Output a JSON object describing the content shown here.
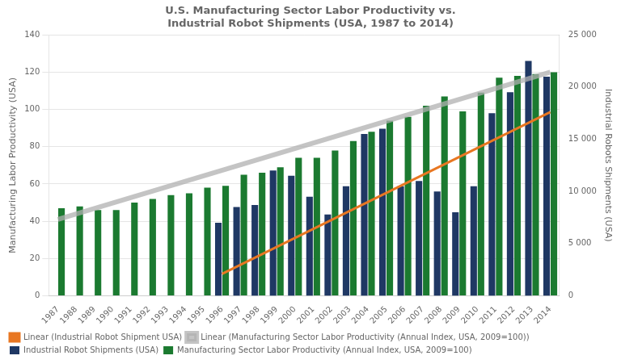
{
  "chart_data": {
    "type": "bar",
    "title": "U.S. Manufacturing Sector Labor Productivity vs.\nIndustrial Robot Shipments (USA, 1987 to 2014)",
    "categories": [
      1987,
      1988,
      1989,
      1990,
      1991,
      1992,
      1993,
      1994,
      1995,
      1996,
      1997,
      1998,
      1999,
      2000,
      2001,
      2002,
      2003,
      2004,
      2005,
      2006,
      2007,
      2008,
      2009,
      2010,
      2011,
      2012,
      2013,
      2014
    ],
    "series": [
      {
        "name": "Industrial Robot Shipments (USA)",
        "type": "bar",
        "color": "#1F3864",
        "axis": "y2",
        "values": [
          0,
          0,
          0,
          0,
          0,
          0,
          0,
          0,
          0,
          7000,
          8500,
          8700,
          12000,
          11500,
          9500,
          7800,
          10500,
          15500,
          16000,
          10500,
          11000,
          10000,
          8000,
          10500,
          17500,
          19500,
          22500,
          21000
        ]
      },
      {
        "name": "Manufacturing Sector Labor Productivity (Annual Index, USA, 2009=100)",
        "type": "bar",
        "color": "#1B7A30",
        "values": [
          47,
          48,
          46,
          46,
          50,
          52,
          54,
          55,
          58,
          59,
          65,
          66,
          69,
          74,
          74,
          78,
          83,
          88,
          94,
          96,
          102,
          107,
          99,
          109,
          117,
          118,
          119,
          120
        ]
      },
      {
        "name": "Linear (Industrial Robot Shipment USA)",
        "type": "line",
        "color": "#E87722",
        "axis": "y2",
        "x": [
          1996,
          2014
        ],
        "values": [
          2100,
          17600
        ]
      },
      {
        "name": "Linear (Manufacturing Sector Labor Productivity (Annual Index, USA, 2009=100))",
        "type": "line",
        "color": "#B0B0B0",
        "x": [
          1987,
          2014
        ],
        "values": [
          41,
          120
        ]
      }
    ],
    "ylabel": "Manufacturing Labor Productivity (USA)",
    "y2label": "Industrial Robots Shipments (USA)",
    "ylim": [
      0,
      140
    ],
    "yticks": [
      0,
      20,
      40,
      60,
      80,
      100,
      120,
      140
    ],
    "y2lim": [
      0,
      25000
    ],
    "y2ticks": [
      0,
      {
        "value": 5000,
        "label": "5 000"
      },
      {
        "value": 10000,
        "label": "10 000"
      },
      {
        "value": 15000,
        "label": "15 000"
      },
      {
        "value": 20000,
        "label": "20 000"
      },
      {
        "value": 25000,
        "label": "25 000"
      }
    ],
    "grid": true,
    "legend": "lower left"
  }
}
